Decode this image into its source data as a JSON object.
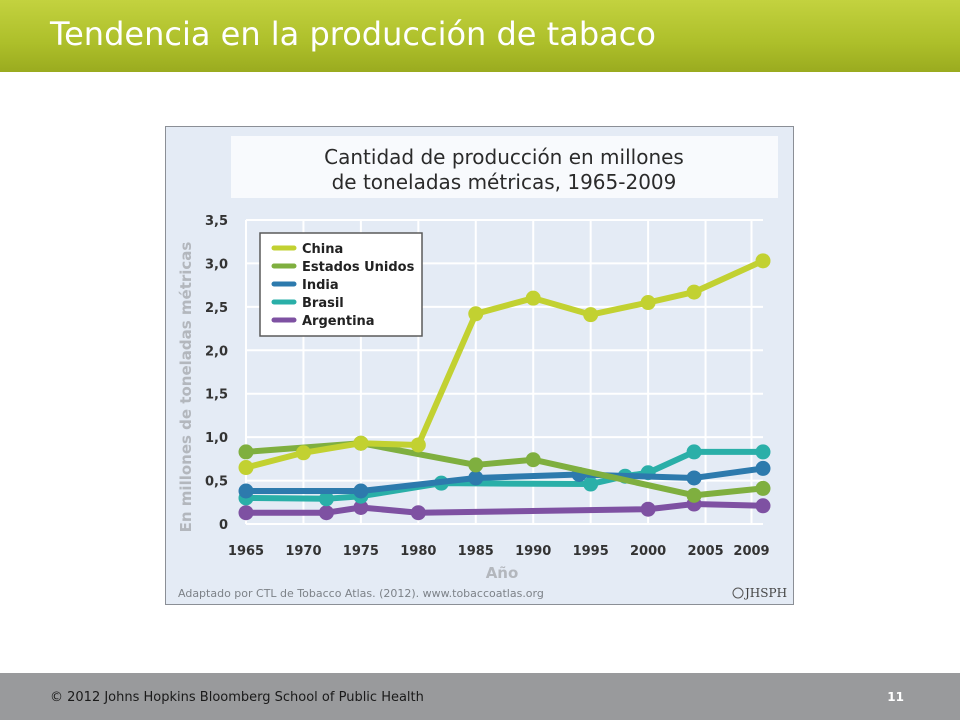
{
  "slide": {
    "title": "Tendencia en la producción de tabaco",
    "copyright": "© 2012 Johns Hopkins Bloomberg School of Public Health",
    "page_number": "11"
  },
  "chart_data": {
    "type": "line",
    "title_line1": "Cantidad de producción en millones",
    "title_line2": "de toneladas métricas, 1965-2009",
    "xlabel": "Año",
    "ylabel": "En millones de toneladas métricas",
    "x_ticks": [
      "1965",
      "1970",
      "1975",
      "1980",
      "1985",
      "1990",
      "1995",
      "2000",
      "2005",
      "2009"
    ],
    "y_ticks": [
      "0",
      "0,5",
      "1,0",
      "1,5",
      "2,0",
      "2,5",
      "3,0",
      "3,5"
    ],
    "y_tick_values": [
      0,
      0.5,
      1.0,
      1.5,
      2.0,
      2.5,
      3.0,
      3.5
    ],
    "xlim": [
      1965,
      2010
    ],
    "ylim": [
      0,
      3.5
    ],
    "grid": true,
    "legend_position": "top-left",
    "source": "Adaptado por CTL de Tobacco Atlas. (2012). www.tobaccoatlas.org",
    "logo_text": "JHSPH",
    "series": [
      {
        "name": "China",
        "color": "#c2d131",
        "x": [
          1965,
          1970,
          1975,
          1980,
          1985,
          1990,
          1995,
          2000,
          2004,
          2010
        ],
        "y": [
          0.65,
          0.82,
          0.93,
          0.91,
          2.42,
          2.6,
          2.41,
          2.55,
          2.67,
          3.03
        ]
      },
      {
        "name": "Estados Unidos",
        "color": "#7faf3f",
        "x": [
          1965,
          1975,
          1985,
          1990,
          2004,
          2010
        ],
        "y": [
          0.83,
          0.93,
          0.68,
          0.74,
          0.33,
          0.41
        ]
      },
      {
        "name": "India",
        "color": "#2d7aad",
        "x": [
          1965,
          1975,
          1985,
          1994,
          2004,
          2010
        ],
        "y": [
          0.38,
          0.38,
          0.53,
          0.57,
          0.53,
          0.64
        ]
      },
      {
        "name": "Brasil",
        "color": "#2aafa8",
        "x": [
          1965,
          1972,
          1975,
          1982,
          1995,
          1998,
          2000,
          2004,
          2010
        ],
        "y": [
          0.3,
          0.29,
          0.32,
          0.47,
          0.46,
          0.55,
          0.59,
          0.83,
          0.83
        ]
      },
      {
        "name": "Argentina",
        "color": "#7e51a2",
        "x": [
          1965,
          1972,
          1975,
          1980,
          2000,
          2004,
          2010
        ],
        "y": [
          0.13,
          0.13,
          0.19,
          0.13,
          0.17,
          0.23,
          0.21
        ]
      }
    ]
  }
}
